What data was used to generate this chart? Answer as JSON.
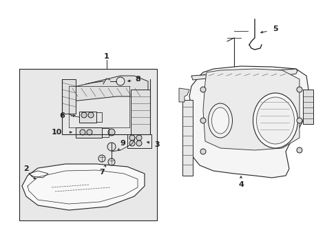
{
  "bg_color": "#ffffff",
  "box_fill": "#e8e8e8",
  "line_color": "#222222",
  "lw": 0.7,
  "figsize": [
    4.89,
    3.6
  ],
  "dpi": 100
}
